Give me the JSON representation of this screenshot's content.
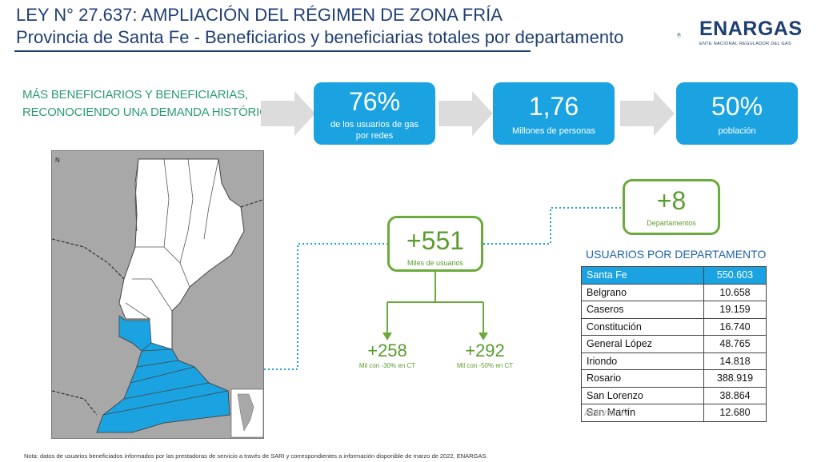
{
  "header": {
    "title_line1": "LEY N° 27.637: AMPLIACIÓN DEL RÉGIMEN DE ZONA FRÍA",
    "title_line2": "Provincia de Santa Fe - Beneficiarios y beneficiarias totales por departamento"
  },
  "logo": {
    "name": "ENARGAS",
    "subtitle": "ENTE NACIONAL REGULADOR DEL GAS",
    "icon": "argentina-coat-of-arms"
  },
  "headline": {
    "line1": "MÁS BENEFICIARIOS Y BENEFICIARIAS,",
    "line2": "RECONOCIENDO UNA DEMANDA HISTÓRICA"
  },
  "stats": [
    {
      "value": "76%",
      "label_line1": "de  los usuarios de gas",
      "label_line2": "por redes"
    },
    {
      "value": "1,76",
      "label_line1": "Millones de personas",
      "label_line2": ""
    },
    {
      "value": "50%",
      "label_line1": "población",
      "label_line2": ""
    }
  ],
  "departments_box": {
    "value": "+8",
    "label": "Departamentos"
  },
  "users_box": {
    "value": "+551",
    "label": "Miles de usuarios"
  },
  "split": [
    {
      "value": "+258",
      "label": "Mil con -30% en CT"
    },
    {
      "value": "+292",
      "label": "Mil con -50% en CT"
    }
  ],
  "map": {
    "north_label": "N"
  },
  "users_table": {
    "title": "USUARIOS POR DEPARTAMENTO",
    "rows": [
      {
        "name": "Santa Fe",
        "value": "550.603"
      },
      {
        "name": "Belgrano",
        "value": "10.658"
      },
      {
        "name": "Caseros",
        "value": "19.159"
      },
      {
        "name": "Constitución",
        "value": "16.740"
      },
      {
        "name": "General López",
        "value": "48.765"
      },
      {
        "name": "Iriondo",
        "value": "14.818"
      },
      {
        "name": "Rosario",
        "value": "388.919"
      },
      {
        "name": "San Lorenzo",
        "value": "38.864"
      },
      {
        "name": "San Martín",
        "value": "12.680"
      }
    ]
  },
  "watermark": "Activar W",
  "note": "Nota: datos de usuarios beneficiados informados por las prestadoras de servicio a través de SARI y correspondientes a información disponible de marzo de 2022, ENARGAS.",
  "colors": {
    "title": "#1f3f73",
    "accent_blue": "#1aa3e0",
    "accent_green": "#6aab3c",
    "headline_green": "#2e9a7a",
    "table_title": "#1f62a8"
  }
}
